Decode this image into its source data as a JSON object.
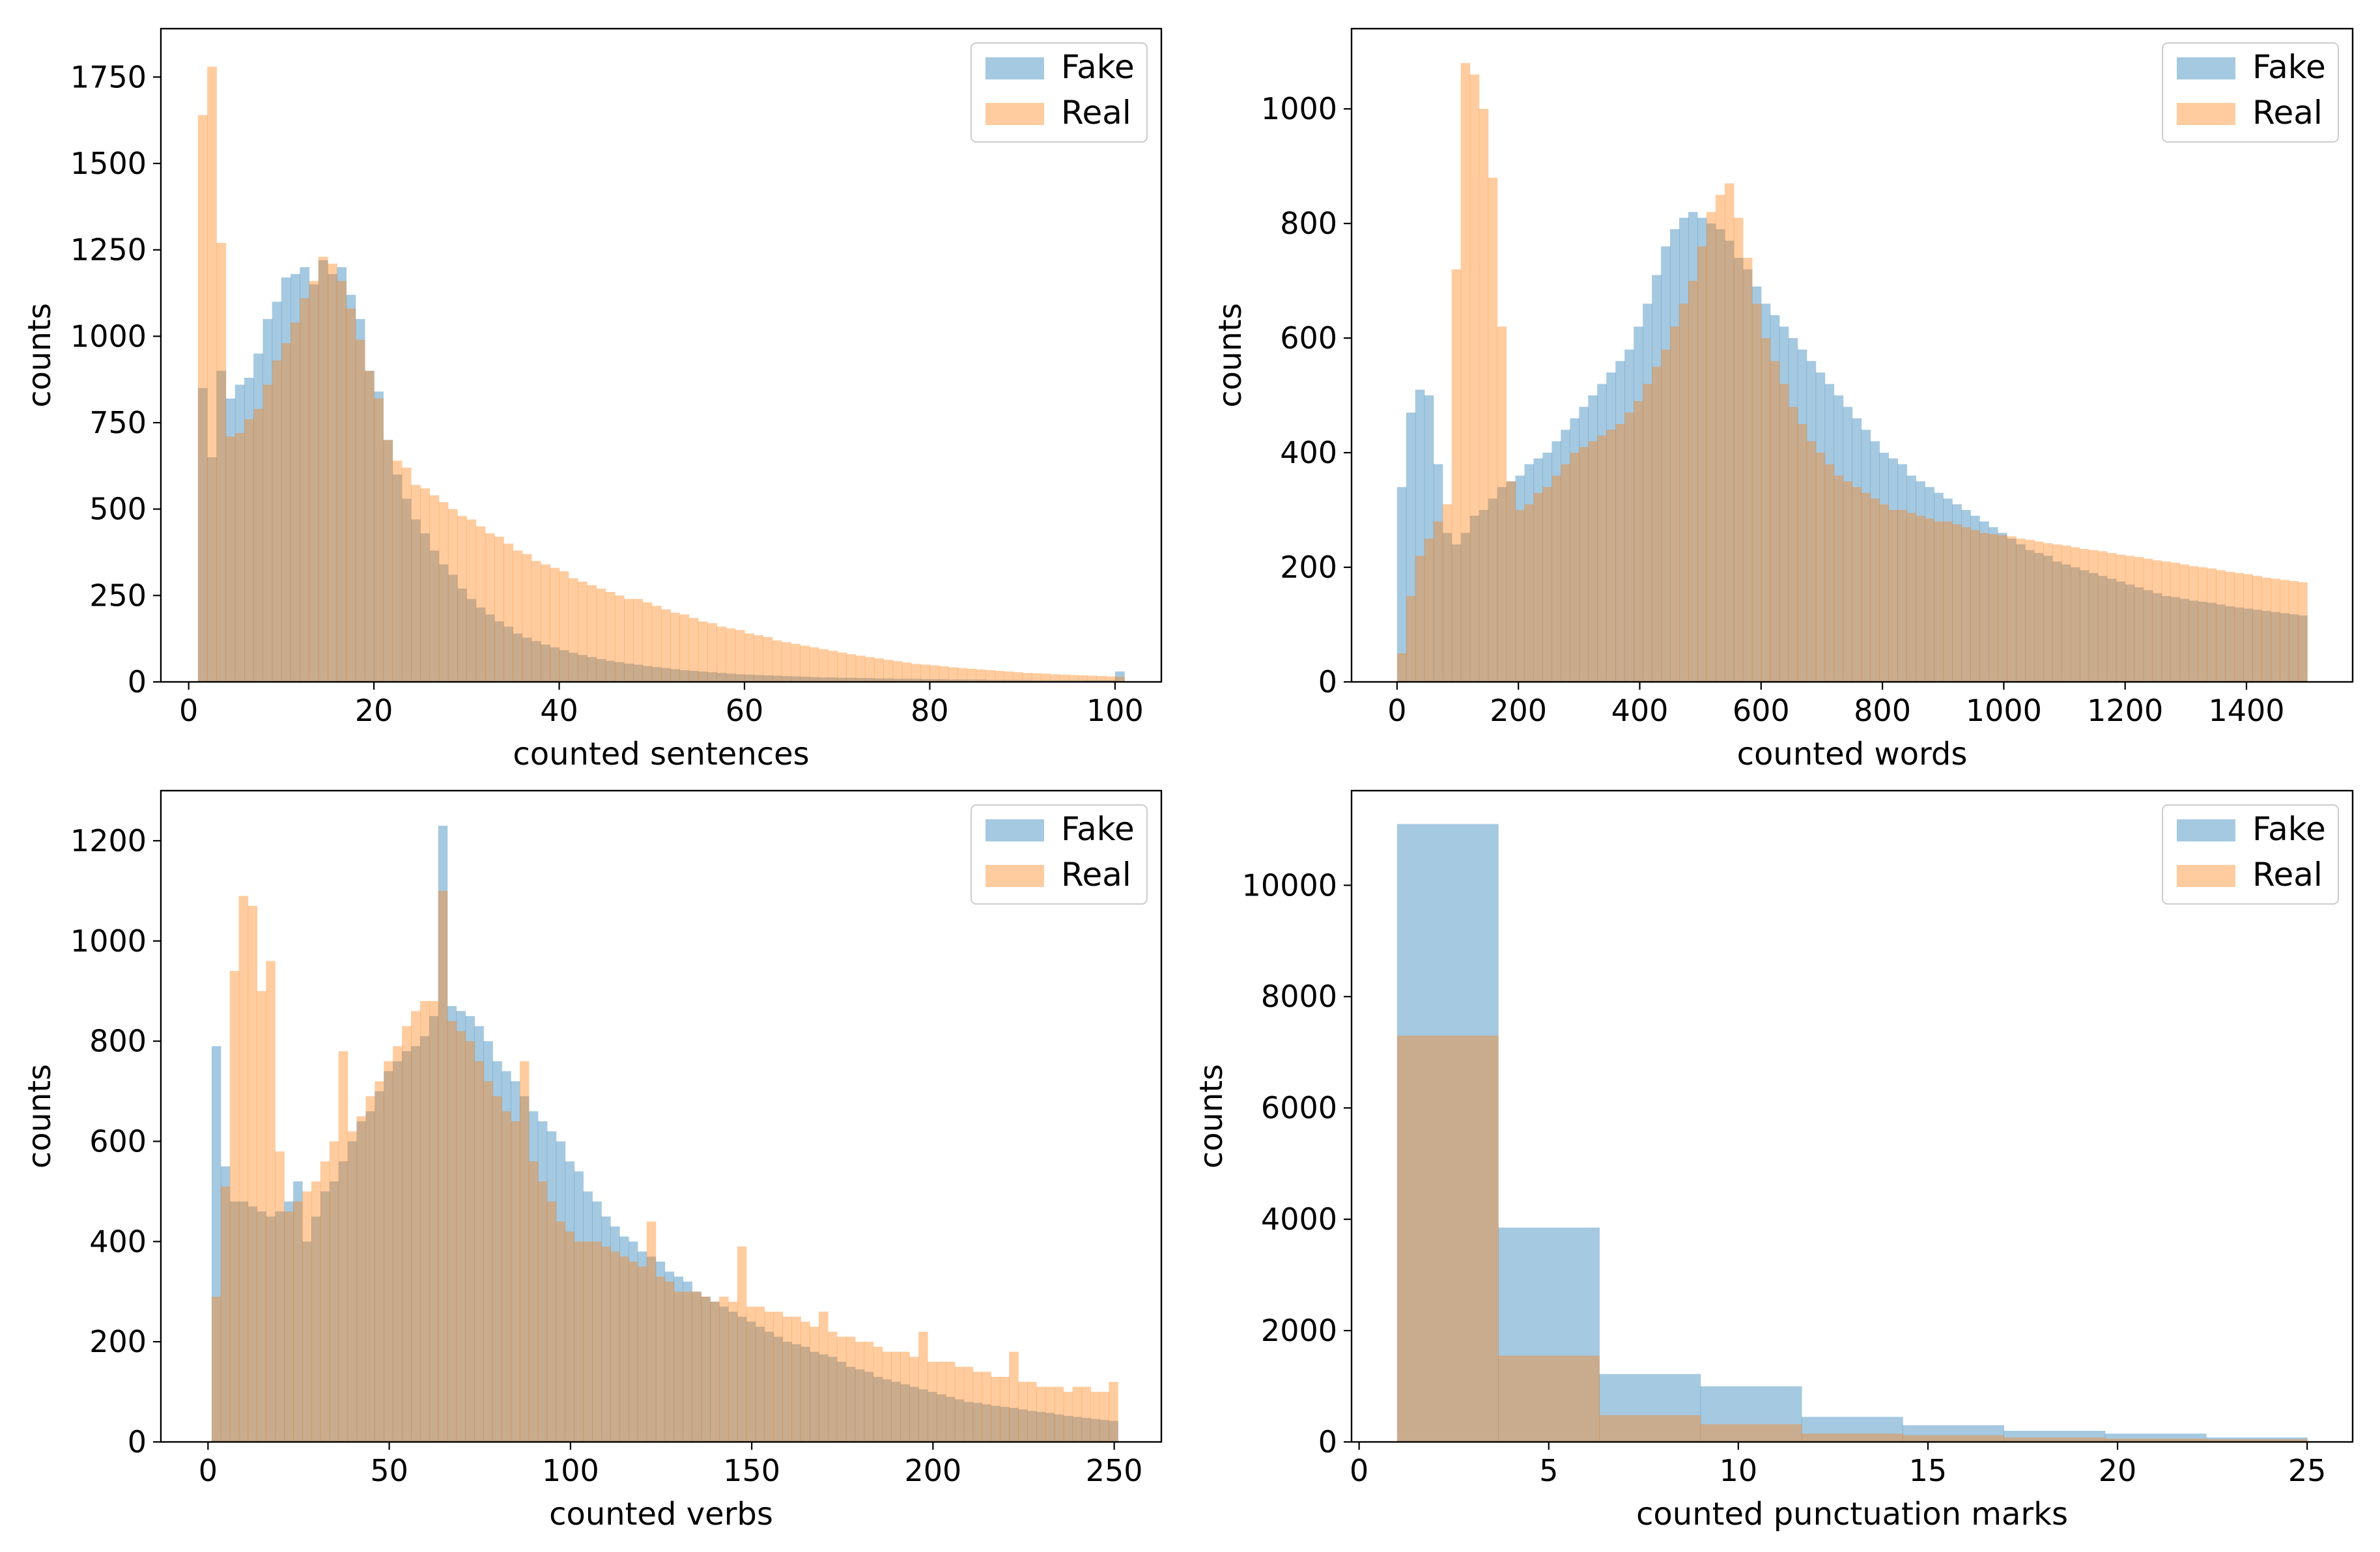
{
  "colors": {
    "fake": "#1f77b4",
    "real": "#ff7f0e",
    "bar_alpha": 0.4
  },
  "chart_data": [
    {
      "type": "histogram",
      "xlabel": "counted sentences",
      "ylabel": "counts",
      "xlim": [
        -3,
        105
      ],
      "ylim": [
        0,
        1890
      ],
      "xticks": [
        0,
        20,
        40,
        60,
        80,
        100
      ],
      "yticks": [
        0,
        250,
        500,
        750,
        1000,
        1250,
        1500,
        1750
      ],
      "legend": {
        "position": "top-right",
        "entries": [
          "Fake",
          "Real"
        ]
      },
      "bin_start": 1,
      "bin_width": 1,
      "series": [
        {
          "name": "Fake",
          "values": [
            850,
            650,
            900,
            820,
            860,
            880,
            950,
            1050,
            1100,
            1170,
            1180,
            1200,
            1150,
            1220,
            1180,
            1200,
            1120,
            1050,
            900,
            840,
            700,
            600,
            530,
            470,
            430,
            380,
            340,
            310,
            270,
            240,
            215,
            195,
            175,
            160,
            140,
            128,
            118,
            108,
            100,
            92,
            84,
            78,
            72,
            66,
            61,
            57,
            53,
            50,
            46,
            43,
            40,
            37,
            34,
            32,
            30,
            28,
            26,
            24,
            22,
            21,
            20,
            19,
            18,
            17,
            16,
            15,
            14,
            13,
            13,
            12,
            12,
            11,
            11,
            10,
            10,
            9,
            9,
            9,
            8,
            8,
            8,
            7,
            7,
            7,
            7,
            6,
            6,
            6,
            6,
            6,
            5,
            5,
            5,
            5,
            5,
            5,
            5,
            5,
            5,
            30
          ]
        },
        {
          "name": "Real",
          "values": [
            1640,
            1780,
            1270,
            710,
            720,
            760,
            790,
            860,
            930,
            980,
            1040,
            1110,
            1160,
            1230,
            1210,
            1160,
            1080,
            990,
            900,
            820,
            700,
            640,
            620,
            570,
            560,
            540,
            520,
            500,
            480,
            470,
            450,
            430,
            420,
            400,
            380,
            370,
            350,
            340,
            330,
            320,
            300,
            290,
            280,
            270,
            260,
            250,
            240,
            240,
            230,
            220,
            210,
            200,
            195,
            185,
            175,
            170,
            160,
            155,
            150,
            140,
            135,
            130,
            120,
            115,
            110,
            105,
            100,
            95,
            90,
            85,
            80,
            76,
            72,
            68,
            64,
            60,
            56,
            52,
            50,
            48,
            45,
            42,
            40,
            38,
            36,
            34,
            32,
            30,
            28,
            26,
            25,
            24,
            22,
            21,
            20,
            19,
            18,
            17,
            16,
            15
          ]
        }
      ]
    },
    {
      "type": "histogram",
      "xlabel": "counted words",
      "ylabel": "counts",
      "xlim": [
        -75,
        1575
      ],
      "ylim": [
        0,
        1140
      ],
      "xticks": [
        0,
        200,
        400,
        600,
        800,
        1000,
        1200,
        1400
      ],
      "yticks": [
        0,
        200,
        400,
        600,
        800,
        1000
      ],
      "legend": {
        "position": "top-right",
        "entries": [
          "Fake",
          "Real"
        ]
      },
      "bin_start": 0,
      "bin_width": 15,
      "series": [
        {
          "name": "Fake",
          "values": [
            340,
            470,
            510,
            500,
            380,
            260,
            240,
            260,
            290,
            300,
            320,
            340,
            350,
            360,
            380,
            390,
            400,
            420,
            440,
            460,
            480,
            500,
            520,
            540,
            560,
            580,
            620,
            660,
            710,
            760,
            790,
            810,
            820,
            810,
            800,
            790,
            770,
            740,
            720,
            690,
            660,
            640,
            620,
            600,
            580,
            560,
            540,
            520,
            500,
            480,
            460,
            440,
            420,
            400,
            390,
            380,
            360,
            350,
            340,
            330,
            320,
            310,
            300,
            290,
            280,
            270,
            260,
            250,
            240,
            230,
            225,
            220,
            210,
            205,
            200,
            195,
            190,
            185,
            180,
            175,
            170,
            165,
            160,
            155,
            150,
            148,
            145,
            142,
            140,
            138,
            135,
            132,
            130,
            128,
            126,
            124,
            122,
            120,
            118,
            116
          ]
        },
        {
          "name": "Real",
          "values": [
            50,
            150,
            220,
            250,
            280,
            310,
            720,
            1080,
            1060,
            1000,
            880,
            620,
            350,
            300,
            310,
            330,
            340,
            360,
            380,
            400,
            410,
            420,
            430,
            440,
            450,
            470,
            490,
            520,
            550,
            580,
            620,
            660,
            700,
            760,
            820,
            850,
            870,
            810,
            740,
            660,
            600,
            560,
            520,
            480,
            450,
            420,
            400,
            380,
            360,
            350,
            340,
            330,
            320,
            310,
            300,
            300,
            295,
            290,
            285,
            280,
            280,
            275,
            270,
            265,
            260,
            258,
            256,
            254,
            250,
            248,
            245,
            242,
            240,
            238,
            235,
            232,
            230,
            228,
            225,
            222,
            220,
            218,
            215,
            212,
            210,
            208,
            205,
            202,
            200,
            198,
            195,
            192,
            190,
            188,
            185,
            182,
            180,
            178,
            176,
            174
          ]
        }
      ]
    },
    {
      "type": "histogram",
      "xlabel": "counted verbs",
      "ylabel": "counts",
      "xlim": [
        -13,
        263
      ],
      "ylim": [
        0,
        1300
      ],
      "xticks": [
        0,
        50,
        100,
        150,
        200,
        250
      ],
      "yticks": [
        0,
        200,
        400,
        600,
        800,
        1000,
        1200
      ],
      "legend": {
        "position": "top-right",
        "entries": [
          "Fake",
          "Real"
        ]
      },
      "bin_start": 1,
      "bin_width": 2.5,
      "series": [
        {
          "name": "Fake",
          "values": [
            790,
            550,
            480,
            480,
            470,
            460,
            450,
            460,
            480,
            520,
            400,
            450,
            500,
            520,
            560,
            600,
            640,
            660,
            700,
            740,
            760,
            780,
            790,
            810,
            850,
            1230,
            870,
            860,
            850,
            830,
            800,
            760,
            740,
            720,
            690,
            660,
            640,
            620,
            600,
            560,
            540,
            500,
            480,
            450,
            430,
            410,
            400,
            380,
            370,
            360,
            340,
            330,
            320,
            300,
            290,
            280,
            270,
            260,
            250,
            240,
            230,
            220,
            210,
            200,
            195,
            190,
            180,
            175,
            170,
            160,
            150,
            145,
            140,
            130,
            125,
            120,
            115,
            110,
            105,
            100,
            95,
            90,
            85,
            80,
            78,
            75,
            72,
            70,
            68,
            65,
            62,
            60,
            58,
            55,
            52,
            50,
            48,
            46,
            44,
            42
          ]
        },
        {
          "name": "Real",
          "values": [
            290,
            510,
            940,
            1090,
            1070,
            900,
            960,
            580,
            460,
            480,
            500,
            520,
            560,
            600,
            780,
            620,
            650,
            690,
            720,
            760,
            790,
            830,
            860,
            880,
            880,
            1100,
            840,
            820,
            800,
            760,
            720,
            690,
            660,
            640,
            760,
            560,
            520,
            480,
            440,
            420,
            400,
            400,
            400,
            390,
            380,
            370,
            360,
            350,
            440,
            330,
            320,
            300,
            300,
            300,
            290,
            280,
            290,
            280,
            390,
            270,
            270,
            260,
            260,
            250,
            250,
            240,
            230,
            260,
            220,
            210,
            210,
            200,
            200,
            190,
            180,
            180,
            180,
            170,
            220,
            160,
            160,
            160,
            150,
            150,
            140,
            140,
            130,
            130,
            180,
            120,
            120,
            110,
            110,
            110,
            100,
            110,
            110,
            100,
            100,
            120
          ]
        }
      ]
    },
    {
      "type": "histogram",
      "xlabel": "counted punctuation marks",
      "ylabel": "counts",
      "xlim": [
        -0.2,
        26.2
      ],
      "ylim": [
        0,
        11700
      ],
      "xticks": [
        0,
        5,
        10,
        15,
        20,
        25
      ],
      "yticks": [
        0,
        2000,
        4000,
        6000,
        8000,
        10000
      ],
      "legend": {
        "position": "top-right",
        "entries": [
          "Fake",
          "Real"
        ]
      },
      "bin_start": 1,
      "bin_width": 2.6667,
      "series": [
        {
          "name": "Fake",
          "values": [
            11100,
            3850,
            1220,
            1000,
            450,
            300,
            200,
            150,
            80
          ]
        },
        {
          "name": "Real",
          "values": [
            7300,
            1550,
            480,
            320,
            150,
            120,
            80,
            60,
            50
          ]
        }
      ]
    }
  ]
}
